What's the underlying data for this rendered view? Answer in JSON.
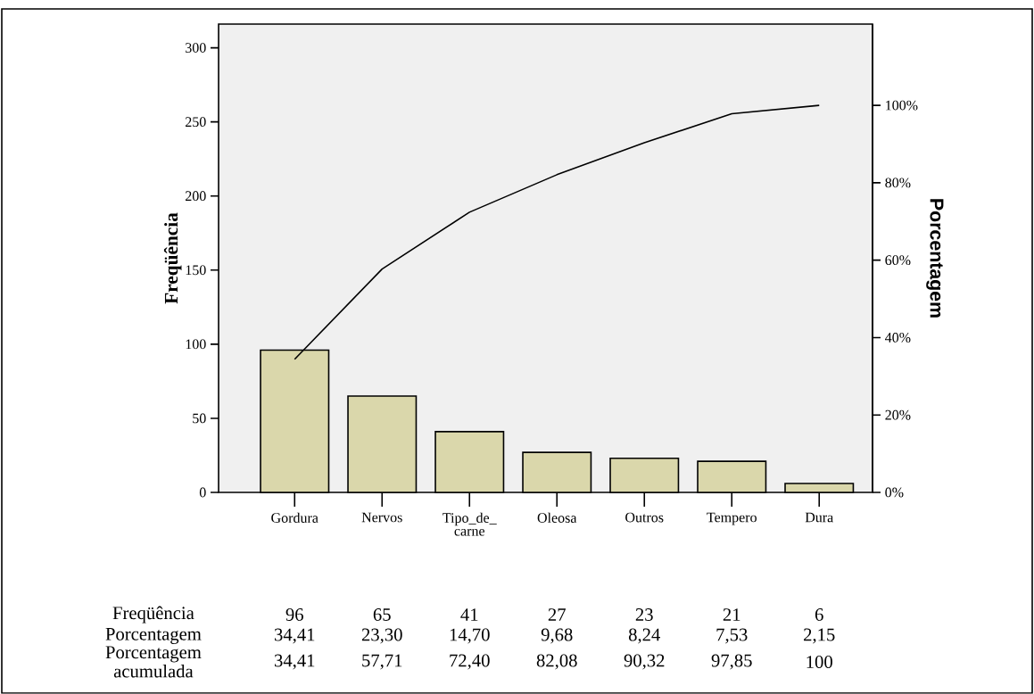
{
  "chart_data": {
    "type": "bar",
    "categories": [
      "Gordura",
      "Nervos",
      "Tipo_de_ carne",
      "Oleosa",
      "Outros",
      "Tempero",
      "Dura"
    ],
    "series": [
      {
        "color": "#dad7ab",
        "values": [
          96,
          65,
          41,
          27,
          23,
          21,
          6
        ],
        "value_labels": [
          "96",
          "65",
          "41",
          "27",
          "23",
          "21",
          "6"
        ]
      },
      {
        "type": "line",
        "axis": "y2",
        "color": "#000000",
        "values": [
          34.41,
          57.71,
          72.4,
          82.08,
          90.32,
          97.85,
          100
        ],
        "value_labels": [
          "34,41",
          "57,71",
          "72,40",
          "82,08",
          "90,32",
          "97,85",
          "100"
        ]
      }
    ],
    "ylabel": "Freqüência",
    "y2label": "Porcentagem",
    "ylim": [
      0,
      316
    ],
    "yticks": [
      0,
      50,
      100,
      150,
      200,
      250,
      300
    ],
    "y2lim": [
      0,
      121
    ],
    "y2ticks": [
      {
        "value": 0,
        "label": "0%"
      },
      {
        "value": 20,
        "label": "20%"
      },
      {
        "value": 40,
        "label": "40%"
      },
      {
        "value": 60,
        "label": "60%"
      },
      {
        "value": 80,
        "label": "80%"
      },
      {
        "value": 100,
        "label": "100%"
      }
    ],
    "annotations": [
      "Freqüência",
      "Porcentagem",
      "Porcentagem acumulada",
      "34,41",
      "23,30",
      "14,70",
      "9,68",
      "8,24",
      "7,53",
      "2,15"
    ],
    "grid": false
  }
}
